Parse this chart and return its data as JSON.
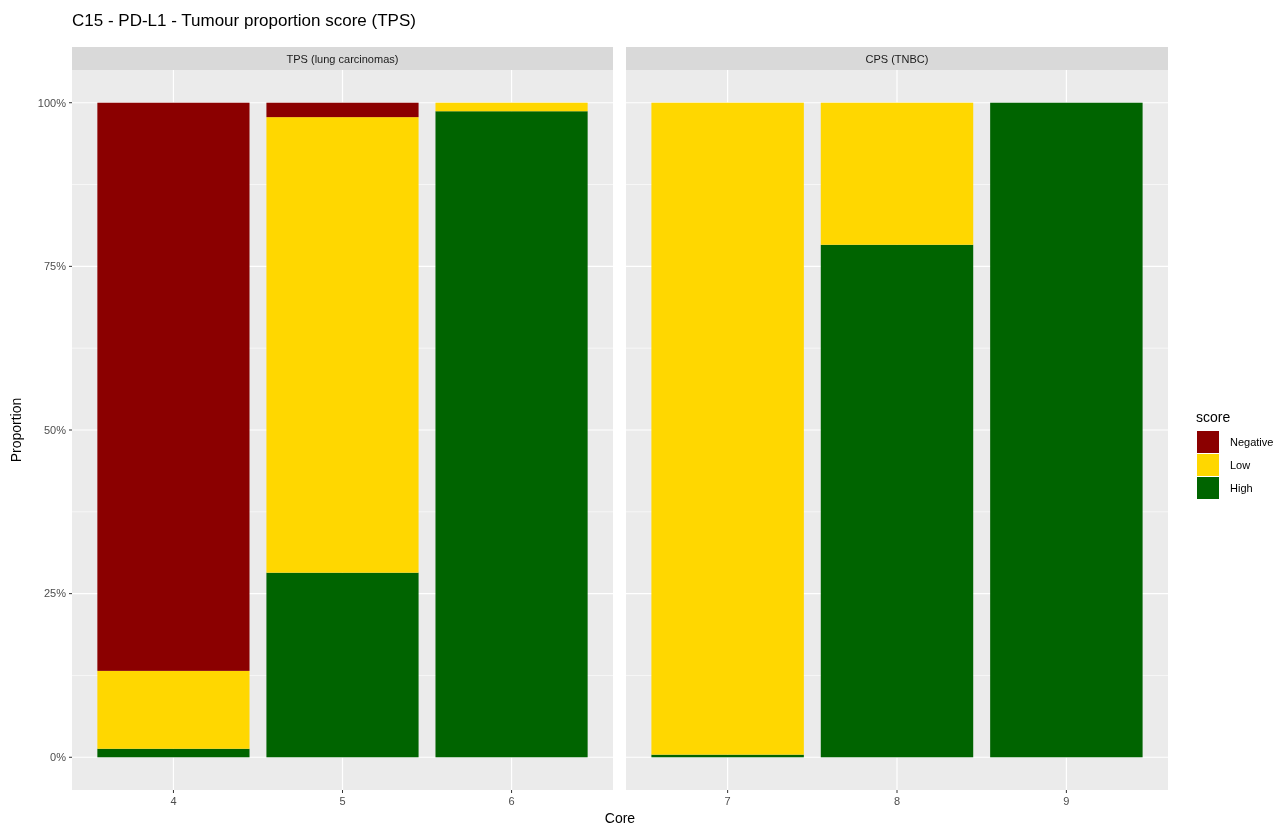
{
  "chart_data": [
    {
      "type": "bar",
      "title": "C15 - PD-L1 - Tumour proportion score (TPS)",
      "subtitle": "TPS (lung carcinomas)",
      "xlabel": "Core",
      "ylabel": "Proportion",
      "categories": [
        "4",
        "5",
        "6"
      ],
      "stacked": true,
      "grid": true,
      "legend": "right",
      "legend_title": "score",
      "series": [
        {
          "name": "High",
          "color": "#006400",
          "values": [
            1.3,
            28.2,
            98.7
          ]
        },
        {
          "name": "Low",
          "color": "#ffd700",
          "values": [
            11.9,
            69.6,
            1.3
          ]
        },
        {
          "name": "Negative",
          "color": "#8b0000",
          "values": [
            86.8,
            2.2,
            0
          ]
        }
      ],
      "ylim": [
        -5,
        105
      ],
      "yticks": [
        {
          "value": 0,
          "label": "0%"
        },
        {
          "value": 25,
          "label": "25%"
        },
        {
          "value": 50,
          "label": "50%"
        },
        {
          "value": 75,
          "label": "75%"
        },
        {
          "value": 100,
          "label": "100%"
        }
      ]
    },
    {
      "type": "bar",
      "subtitle": "CPS (TNBC)",
      "categories": [
        "7",
        "8",
        "9"
      ],
      "stacked": true,
      "grid": true,
      "tick_labels": "x",
      "series": [
        {
          "color": "#006400",
          "values": [
            0.4,
            78.3,
            100
          ]
        },
        {
          "color": "#ffd700",
          "values": [
            99.6,
            21.7,
            0
          ]
        },
        {
          "color": "#8b0000",
          "values": [
            0,
            0,
            0
          ]
        }
      ],
      "ylim": [
        -5,
        105
      ],
      "yticks": [
        0,
        25,
        50,
        75,
        100
      ]
    }
  ]
}
